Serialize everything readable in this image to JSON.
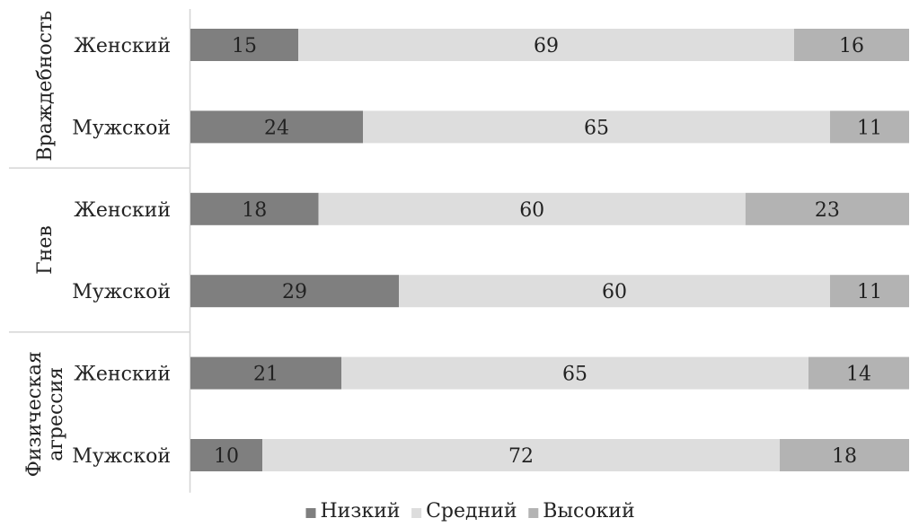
{
  "chart_data": {
    "type": "bar",
    "orientation": "horizontal",
    "stacked": "percent",
    "groups": [
      {
        "name": "Враждебность",
        "name_lines": [
          "Враждебность"
        ],
        "rows": [
          {
            "label": "Женский",
            "values": [
              15,
              69,
              16
            ]
          },
          {
            "label": "Мужской",
            "values": [
              24,
              65,
              11
            ]
          }
        ]
      },
      {
        "name": "Гнев",
        "name_lines": [
          "Гнев"
        ],
        "rows": [
          {
            "label": "Женский",
            "values": [
              18,
              60,
              23
            ]
          },
          {
            "label": "Мужской",
            "values": [
              29,
              60,
              11
            ]
          }
        ]
      },
      {
        "name": "Физическая агрессия",
        "name_lines": [
          "Физическая",
          "агрессия"
        ],
        "rows": [
          {
            "label": "Женский",
            "values": [
              21,
              65,
              14
            ]
          },
          {
            "label": "Мужской",
            "values": [
              10,
              72,
              18
            ]
          }
        ]
      }
    ],
    "series": [
      {
        "name": "Низкий",
        "color": "#7f7f7f"
      },
      {
        "name": "Средний",
        "color": "#dddddd"
      },
      {
        "name": "Высокий",
        "color": "#b3b3b3"
      }
    ],
    "xlim": [
      0,
      100
    ],
    "grid": false,
    "legend": "bottom"
  }
}
